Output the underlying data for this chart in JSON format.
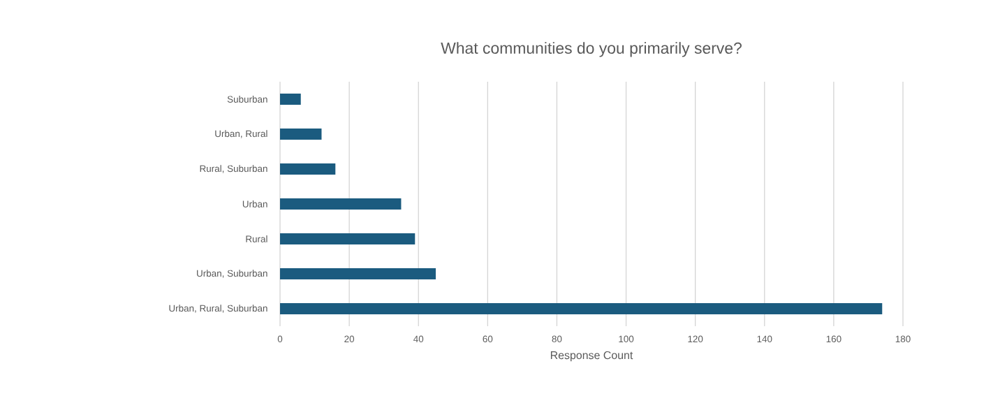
{
  "chart_data": {
    "type": "bar",
    "orientation": "horizontal",
    "title": "What communities do you primarily serve?",
    "xlabel": "Response Count",
    "categories": [
      "Suburban",
      "Urban, Rural",
      "Rural, Suburban",
      "Urban",
      "Rural",
      "Urban, Suburban",
      "Urban, Rural, Suburban"
    ],
    "values": [
      6,
      12,
      16,
      35,
      39,
      45,
      174
    ],
    "color": "#1b5b7f",
    "xlim": [
      0,
      180
    ],
    "xticks": [
      0,
      20,
      40,
      60,
      80,
      100,
      120,
      140,
      160,
      180
    ],
    "grid": "x"
  }
}
